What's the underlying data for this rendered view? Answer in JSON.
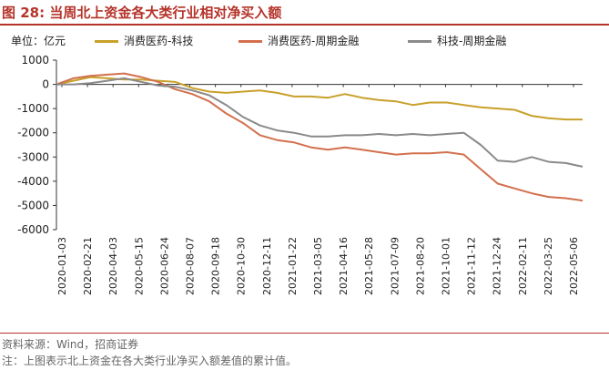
{
  "header": {
    "title": "图 28:  当周北上资金各大类行业相对净买入额"
  },
  "chart_data": {
    "type": "line",
    "title": "图 28:  当周北上资金各大类行业相对净买入额",
    "unit_label": "单位：亿元",
    "ylim": [
      -6000,
      1000
    ],
    "yticks": [
      1000,
      0,
      -1000,
      -2000,
      -3000,
      -4000,
      -5000,
      -6000
    ],
    "x_tick_labels": [
      "2020-01-03",
      "2020-02-21",
      "2020-04-03",
      "2020-05-15",
      "2020-06-24",
      "2020-08-07",
      "2020-09-18",
      "2020-10-30",
      "2020-12-11",
      "2021-01-22",
      "2021-03-05",
      "2021-04-16",
      "2021-05-28",
      "2021-07-09",
      "2021-08-20",
      "2021-10-01",
      "2021-11-12",
      "2021-12-24",
      "2022-02-11",
      "2022-03-25",
      "2022-05-06"
    ],
    "legend_position": "top",
    "grid": false,
    "series": [
      {
        "name": "消费医药-科技",
        "color": "#c8a12b",
        "values": [
          0,
          150,
          300,
          250,
          200,
          200,
          150,
          100,
          -150,
          -300,
          -350,
          -300,
          -250,
          -350,
          -500,
          -500,
          -550,
          -400,
          -550,
          -650,
          -700,
          -850,
          -750,
          -750,
          -850,
          -950,
          -1000,
          -1050,
          -1300,
          -1400,
          -1450,
          -1450
        ]
      },
      {
        "name": "消费医药-周期金融",
        "color": "#d2704e",
        "values": [
          0,
          250,
          350,
          400,
          450,
          300,
          100,
          -200,
          -400,
          -700,
          -1200,
          -1600,
          -2100,
          -2300,
          -2400,
          -2600,
          -2700,
          -2600,
          -2700,
          -2800,
          -2900,
          -2850,
          -2850,
          -2800,
          -2900,
          -3500,
          -4100,
          -4300,
          -4500,
          -4650,
          -4700,
          -4800
        ]
      },
      {
        "name": "科技-周期金融",
        "color": "#8a8a8a",
        "values": [
          0,
          0,
          50,
          150,
          250,
          100,
          -50,
          -100,
          -250,
          -450,
          -850,
          -1350,
          -1700,
          -1900,
          -2000,
          -2150,
          -2150,
          -2100,
          -2100,
          -2050,
          -2100,
          -2050,
          -2100,
          -2050,
          -2000,
          -2500,
          -3150,
          -3200,
          -3000,
          -3200,
          -3250,
          -3400
        ]
      }
    ]
  },
  "footer": {
    "source": "资料来源：Wind，招商证券",
    "note": "注：上图表示北上资金在各大类行业净买入额差值的累计值。"
  }
}
